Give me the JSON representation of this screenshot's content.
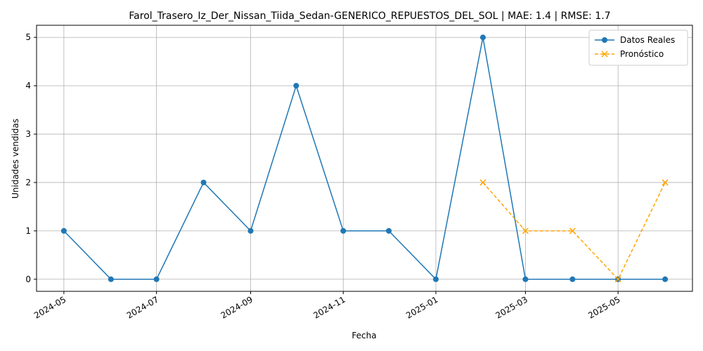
{
  "chart_data": {
    "type": "line",
    "title": "Farol_Trasero_Iz_Der_Nissan_Tiida_Sedan-GENERICO_REPUESTOS_DEL_SOL | MAE: 1.4 | RMSE: 1.7",
    "xlabel": "Fecha",
    "ylabel": "Unidades vendidas",
    "x_ticks": [
      "2024-05",
      "2024-07",
      "2024-09",
      "2024-11",
      "2025-01",
      "2025-03",
      "2025-05"
    ],
    "y_ticks": [
      0,
      1,
      2,
      3,
      4,
      5
    ],
    "ylim": [
      -0.25,
      5.25
    ],
    "xlim": [
      "2024-04-13",
      "2025-06-19"
    ],
    "grid": true,
    "legend_position": "top-right",
    "series": [
      {
        "name": "Datos Reales",
        "color": "#1f77b4",
        "marker": "circle",
        "linestyle": "solid",
        "x": [
          "2024-05-01",
          "2024-06-01",
          "2024-07-01",
          "2024-08-01",
          "2024-09-01",
          "2024-10-01",
          "2024-11-01",
          "2024-12-01",
          "2025-01-01",
          "2025-02-01",
          "2025-03-01",
          "2025-04-01",
          "2025-05-01",
          "2025-06-01"
        ],
        "values": [
          1,
          0,
          0,
          2,
          1,
          4,
          1,
          1,
          0,
          5,
          0,
          0,
          0,
          0
        ]
      },
      {
        "name": "Pronóstico",
        "color": "#ffa500",
        "marker": "x",
        "linestyle": "dashed",
        "x": [
          "2025-02-01",
          "2025-03-01",
          "2025-04-01",
          "2025-05-01",
          "2025-06-01"
        ],
        "values": [
          2,
          1,
          1,
          0,
          2
        ]
      }
    ]
  }
}
